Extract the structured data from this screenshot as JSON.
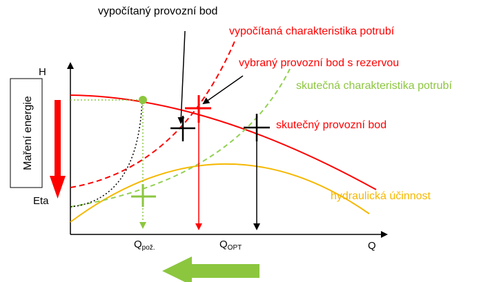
{
  "labels": {
    "calc_point": "vypočítaný provozní bod",
    "calc_curve": "vypočítaná charakteristika potrubí",
    "chosen_point": "vybraný provozní bod s rezervou",
    "actual_curve": "skutečná charakteristika potrubí",
    "actual_point": "skutečný provozní bod",
    "efficiency": "hydraulická účinnost"
  },
  "axes": {
    "y_top": "H",
    "y_bottom": "Eta",
    "x": "Q",
    "q_req_main": "Q",
    "q_req_sub": "pož.",
    "q_opt_main": "Q",
    "q_opt_sub": "OPT"
  },
  "side_box": "Maření energie",
  "colors": {
    "red": "#ff0000",
    "green": "#8cc63f",
    "dashed_green": "#92d050",
    "yellow": "#f5b800",
    "black": "#000000"
  }
}
